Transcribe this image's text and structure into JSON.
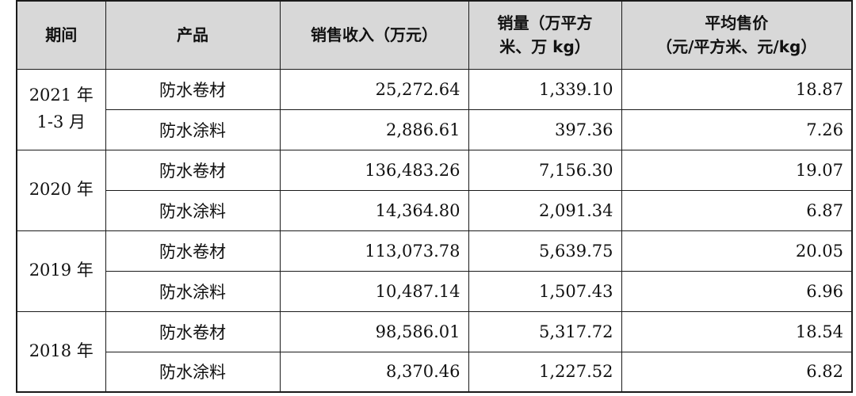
{
  "table": {
    "headers": {
      "period": "期间",
      "product": "产品",
      "revenue": "销售收入（万元）",
      "volume_line1": "销量（万平方",
      "volume_line2": "米、万 kg）",
      "price_line1": "平均售价",
      "price_line2": "（元/平方米、元/kg）"
    },
    "groups": [
      {
        "period_line1": "2021 年",
        "period_line2": "1-3 月",
        "rows": [
          {
            "product": "防水卷材",
            "revenue": "25,272.64",
            "volume": "1,339.10",
            "price": "18.87"
          },
          {
            "product": "防水涂料",
            "revenue": "2,886.61",
            "volume": "397.36",
            "price": "7.26"
          }
        ]
      },
      {
        "period_line1": "2020 年",
        "period_line2": "",
        "rows": [
          {
            "product": "防水卷材",
            "revenue": "136,483.26",
            "volume": "7,156.30",
            "price": "19.07"
          },
          {
            "product": "防水涂料",
            "revenue": "14,364.80",
            "volume": "2,091.34",
            "price": "6.87"
          }
        ]
      },
      {
        "period_line1": "2019 年",
        "period_line2": "",
        "rows": [
          {
            "product": "防水卷材",
            "revenue": "113,073.78",
            "volume": "5,639.75",
            "price": "20.05"
          },
          {
            "product": "防水涂料",
            "revenue": "10,487.14",
            "volume": "1,507.43",
            "price": "6.96"
          }
        ]
      },
      {
        "period_line1": "2018 年",
        "period_line2": "",
        "rows": [
          {
            "product": "防水卷材",
            "revenue": "98,586.01",
            "volume": "5,317.72",
            "price": "18.54"
          },
          {
            "product": "防水涂料",
            "revenue": "8,370.46",
            "volume": "1,227.52",
            "price": "6.82"
          }
        ]
      }
    ]
  }
}
